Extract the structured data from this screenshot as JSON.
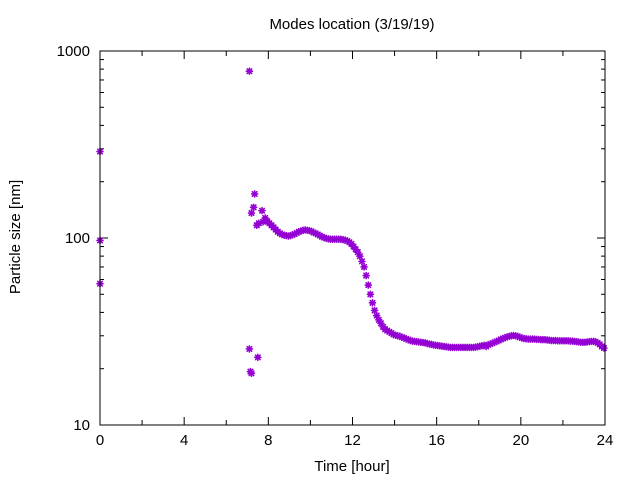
{
  "chart_data": {
    "type": "scatter",
    "title": "Modes location (3/19/19)",
    "xlabel": "Time [hour]",
    "ylabel": "Particle size [nm]",
    "xlim": [
      0,
      24
    ],
    "ylim": [
      10,
      1000
    ],
    "yscale": "log",
    "grid": false,
    "legend": "none",
    "marker_color": "#9400D3",
    "marker": "asterisk",
    "x_ticks": [
      0,
      4,
      8,
      12,
      16,
      20,
      24
    ],
    "x_tick_labels": [
      "0",
      "4",
      "8",
      "12",
      "16",
      "20",
      "24"
    ],
    "y_ticks": [
      10,
      100,
      1000
    ],
    "y_tick_labels": [
      "10",
      "100",
      "1000"
    ],
    "series": [
      {
        "points": [
          [
            0.0,
            290
          ],
          [
            0.0,
            97
          ],
          [
            0.0,
            57
          ],
          [
            7.1,
            780
          ],
          [
            7.1,
            25.5
          ],
          [
            7.15,
            19.3
          ],
          [
            7.2,
            18.9
          ],
          [
            7.2,
            136
          ],
          [
            7.3,
            146
          ],
          [
            7.35,
            172
          ],
          [
            7.45,
            117
          ],
          [
            7.5,
            23
          ],
          [
            7.55,
            120
          ],
          [
            7.7,
            140
          ],
          [
            7.75,
            122
          ],
          [
            7.85,
            128
          ],
          [
            7.95,
            123
          ],
          [
            8.05,
            120
          ],
          [
            8.15,
            117
          ],
          [
            8.25,
            114
          ],
          [
            8.35,
            111
          ],
          [
            8.45,
            108
          ],
          [
            8.55,
            106
          ],
          [
            8.65,
            104.5
          ],
          [
            8.75,
            103.5
          ],
          [
            8.85,
            103
          ],
          [
            8.95,
            102.5
          ],
          [
            9.05,
            103
          ],
          [
            9.15,
            104
          ],
          [
            9.25,
            105
          ],
          [
            9.35,
            106.5
          ],
          [
            9.45,
            108
          ],
          [
            9.55,
            109
          ],
          [
            9.65,
            110
          ],
          [
            9.75,
            110.5
          ],
          [
            9.85,
            110
          ],
          [
            9.95,
            109.5
          ],
          [
            10.05,
            108.5
          ],
          [
            10.15,
            107
          ],
          [
            10.25,
            106
          ],
          [
            10.35,
            104.5
          ],
          [
            10.45,
            103
          ],
          [
            10.55,
            101.5
          ],
          [
            10.65,
            100.5
          ],
          [
            10.75,
            99.5
          ],
          [
            10.85,
            99
          ],
          [
            10.95,
            98.5
          ],
          [
            11.05,
            98.5
          ],
          [
            11.15,
            98.5
          ],
          [
            11.25,
            98.5
          ],
          [
            11.35,
            98.5
          ],
          [
            11.45,
            98.5
          ],
          [
            11.55,
            98
          ],
          [
            11.65,
            97.5
          ],
          [
            11.75,
            96.5
          ],
          [
            11.85,
            95
          ],
          [
            11.95,
            93
          ],
          [
            12.05,
            90
          ],
          [
            12.15,
            87
          ],
          [
            12.25,
            84
          ],
          [
            12.35,
            80
          ],
          [
            12.45,
            75
          ],
          [
            12.55,
            70
          ],
          [
            12.65,
            63
          ],
          [
            12.75,
            56
          ],
          [
            12.85,
            50
          ],
          [
            12.95,
            45
          ],
          [
            13.05,
            41
          ],
          [
            13.15,
            38.5
          ],
          [
            13.25,
            36.5
          ],
          [
            13.35,
            35
          ],
          [
            13.45,
            33.5
          ],
          [
            13.55,
            32.5
          ],
          [
            13.65,
            32
          ],
          [
            13.75,
            31.5
          ],
          [
            13.85,
            31
          ],
          [
            13.95,
            30.5
          ],
          [
            14.05,
            30.2
          ],
          [
            14.15,
            30
          ],
          [
            14.25,
            29.8
          ],
          [
            14.35,
            29.5
          ],
          [
            14.45,
            29.2
          ],
          [
            14.55,
            28.9
          ],
          [
            14.65,
            28.6
          ],
          [
            14.75,
            28.3
          ],
          [
            14.85,
            28.1
          ],
          [
            14.95,
            28
          ],
          [
            15.05,
            27.9
          ],
          [
            15.15,
            27.8
          ],
          [
            15.25,
            27.7
          ],
          [
            15.35,
            27.6
          ],
          [
            15.45,
            27.5
          ],
          [
            15.55,
            27.3
          ],
          [
            15.65,
            27.1
          ],
          [
            15.75,
            27
          ],
          [
            15.85,
            26.8
          ],
          [
            15.95,
            26.7
          ],
          [
            16.05,
            26.6
          ],
          [
            16.15,
            26.5
          ],
          [
            16.25,
            26.4
          ],
          [
            16.35,
            26.3
          ],
          [
            16.45,
            26.2
          ],
          [
            16.55,
            26.1
          ],
          [
            16.65,
            26
          ],
          [
            16.75,
            26
          ],
          [
            16.85,
            26
          ],
          [
            16.95,
            26
          ],
          [
            17.05,
            26
          ],
          [
            17.15,
            26
          ],
          [
            17.25,
            26
          ],
          [
            17.35,
            26
          ],
          [
            17.45,
            26
          ],
          [
            17.55,
            26
          ],
          [
            17.65,
            26
          ],
          [
            17.75,
            26
          ],
          [
            17.85,
            26.1
          ],
          [
            17.95,
            26.2
          ],
          [
            18.05,
            26.4
          ],
          [
            18.15,
            26.5
          ],
          [
            18.25,
            26.7
          ],
          [
            18.35,
            26.3
          ],
          [
            18.45,
            26.9
          ],
          [
            18.55,
            27.1
          ],
          [
            18.65,
            27.4
          ],
          [
            18.75,
            27.7
          ],
          [
            18.85,
            28
          ],
          [
            18.95,
            28.3
          ],
          [
            19.05,
            28.7
          ],
          [
            19.15,
            29
          ],
          [
            19.25,
            29.3
          ],
          [
            19.35,
            29.6
          ],
          [
            19.45,
            29.8
          ],
          [
            19.55,
            30
          ],
          [
            19.65,
            30.1
          ],
          [
            19.75,
            30
          ],
          [
            19.85,
            29.8
          ],
          [
            19.95,
            29.5
          ],
          [
            20.05,
            29.2
          ],
          [
            20.15,
            29
          ],
          [
            20.25,
            28.9
          ],
          [
            20.35,
            28.8
          ],
          [
            20.45,
            28.8
          ],
          [
            20.55,
            28.8
          ],
          [
            20.65,
            28.8
          ],
          [
            20.75,
            28.7
          ],
          [
            20.85,
            28.7
          ],
          [
            20.95,
            28.6
          ],
          [
            21.05,
            28.6
          ],
          [
            21.15,
            28.6
          ],
          [
            21.25,
            28.5
          ],
          [
            21.35,
            28.4
          ],
          [
            21.45,
            28.3
          ],
          [
            21.55,
            28.3
          ],
          [
            21.65,
            28.3
          ],
          [
            21.75,
            28.2
          ],
          [
            21.85,
            28.2
          ],
          [
            21.95,
            28.2
          ],
          [
            22.05,
            28.2
          ],
          [
            22.15,
            28.2
          ],
          [
            22.25,
            28.2
          ],
          [
            22.35,
            28.1
          ],
          [
            22.45,
            28.1
          ],
          [
            22.55,
            28
          ],
          [
            22.65,
            27.9
          ],
          [
            22.75,
            27.8
          ],
          [
            22.85,
            27.7
          ],
          [
            22.95,
            27.7
          ],
          [
            23.05,
            27.7
          ],
          [
            23.15,
            27.8
          ],
          [
            23.25,
            27.9
          ],
          [
            23.35,
            28
          ],
          [
            23.45,
            28
          ],
          [
            23.55,
            27.9
          ],
          [
            23.65,
            27.5
          ],
          [
            23.75,
            27
          ],
          [
            23.85,
            26.3
          ],
          [
            23.95,
            25.8
          ]
        ]
      }
    ]
  }
}
